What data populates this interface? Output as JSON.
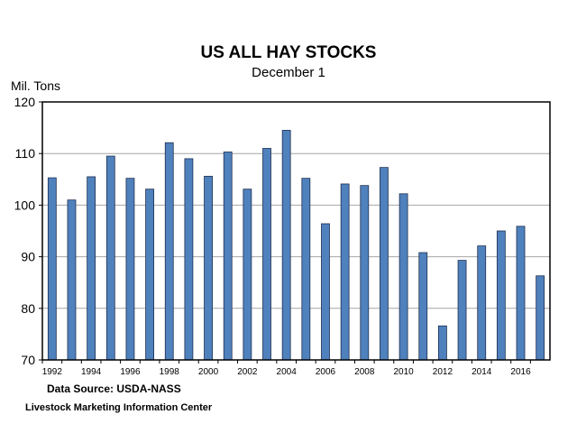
{
  "chart_data": {
    "type": "bar",
    "title": "US ALL HAY STOCKS",
    "subtitle": "December 1",
    "ylabel": "Mil. Tons",
    "xlabel": "",
    "ylim": [
      70,
      120
    ],
    "yticks": [
      70,
      80,
      90,
      100,
      110,
      120
    ],
    "grid": true,
    "bar_color": "#4F81BD",
    "categories": [
      "1992",
      "1993",
      "1994",
      "1995",
      "1996",
      "1997",
      "1998",
      "1999",
      "2000",
      "2001",
      "2002",
      "2003",
      "2004",
      "2005",
      "2006",
      "2007",
      "2008",
      "2009",
      "2010",
      "2011",
      "2012",
      "2013",
      "2014",
      "2015",
      "2016",
      "2017"
    ],
    "xtick_labels": [
      "1992",
      "1994",
      "1996",
      "1998",
      "2000",
      "2002",
      "2004",
      "2006",
      "2008",
      "2010",
      "2012",
      "2014",
      "2016"
    ],
    "values": [
      105.3,
      101.0,
      105.5,
      109.5,
      105.2,
      103.1,
      112.1,
      109.0,
      105.6,
      110.3,
      103.1,
      111.0,
      114.5,
      105.2,
      96.4,
      104.1,
      103.8,
      107.3,
      102.2,
      90.8,
      76.6,
      89.3,
      92.1,
      95.0,
      95.9,
      86.3
    ]
  },
  "footer": {
    "source": "Data Source:  USDA-NASS",
    "org": "Livestock Marketing Information Center"
  }
}
